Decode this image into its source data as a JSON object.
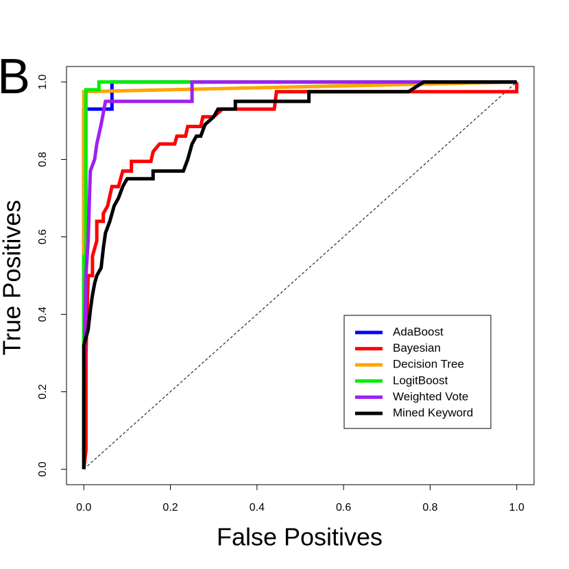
{
  "chart_data": {
    "type": "line",
    "panel_label": "B",
    "x_label": "False Positives",
    "y_label": "True Positives",
    "xlim": [
      -0.04,
      1.04
    ],
    "ylim": [
      -0.04,
      1.04
    ],
    "xticks": [
      {
        "value": 0,
        "label": "0.0"
      },
      0.2,
      0.4,
      0.6,
      0.8,
      {
        "value": 1,
        "label": "1.0"
      }
    ],
    "yticks": [
      {
        "value": 0,
        "label": "0.0"
      },
      0.2,
      0.4,
      0.6,
      0.8,
      {
        "value": 1,
        "label": "1.0"
      }
    ],
    "diagonal": true,
    "legend": "bottom-right",
    "series": [
      {
        "name": "AdaBoost",
        "color": "#0000ff",
        "x": [
          0,
          0,
          0.065,
          0.065,
          1
        ],
        "values": [
          0,
          0.93,
          0.93,
          1,
          1
        ]
      },
      {
        "name": "Bayesian",
        "color": "#ff0000",
        "x": [
          0,
          0.005,
          0.005,
          0.01,
          0.02,
          0.02,
          0.03,
          0.03,
          0.045,
          0.045,
          0.055,
          0.065,
          0.08,
          0.09,
          0.11,
          0.11,
          0.155,
          0.16,
          0.175,
          0.21,
          0.215,
          0.235,
          0.24,
          0.27,
          0.275,
          0.3,
          0.32,
          0.44,
          0.445,
          1,
          1
        ],
        "values": [
          0,
          0.05,
          0.3,
          0.5,
          0.5,
          0.55,
          0.59,
          0.64,
          0.64,
          0.66,
          0.68,
          0.73,
          0.73,
          0.77,
          0.77,
          0.795,
          0.795,
          0.82,
          0.84,
          0.84,
          0.86,
          0.86,
          0.885,
          0.885,
          0.91,
          0.91,
          0.93,
          0.93,
          0.975,
          0.975,
          1
        ]
      },
      {
        "name": "Decision Tree",
        "color": "#ffa500",
        "x": [
          0,
          0,
          1
        ],
        "values": [
          0,
          0.975,
          1
        ]
      },
      {
        "name": "LogitBoost",
        "color": "#00ee00",
        "x": [
          0,
          0,
          0.005,
          0.005,
          0.035,
          0.035,
          1
        ],
        "values": [
          0,
          0.55,
          0.55,
          0.98,
          0.98,
          1,
          1
        ]
      },
      {
        "name": "Weighted Vote",
        "color": "#a020f0",
        "x": [
          0,
          0,
          0.005,
          0.01,
          0.015,
          0.025,
          0.03,
          0.04,
          0.05,
          0.25,
          0.25,
          1
        ],
        "values": [
          0,
          0.2,
          0.5,
          0.59,
          0.77,
          0.8,
          0.84,
          0.89,
          0.95,
          0.95,
          1,
          1
        ]
      },
      {
        "name": "Mined Keyword",
        "color": "#000000",
        "x": [
          0,
          0,
          0.01,
          0.015,
          0.02,
          0.025,
          0.03,
          0.04,
          0.045,
          0.05,
          0.06,
          0.07,
          0.08,
          0.09,
          0.1,
          0.16,
          0.16,
          0.23,
          0.24,
          0.25,
          0.26,
          0.27,
          0.28,
          0.3,
          0.31,
          0.35,
          0.35,
          0.52,
          0.52,
          0.75,
          0.785,
          1
        ],
        "values": [
          0,
          0.32,
          0.36,
          0.41,
          0.45,
          0.48,
          0.5,
          0.52,
          0.57,
          0.61,
          0.64,
          0.68,
          0.7,
          0.73,
          0.75,
          0.75,
          0.77,
          0.77,
          0.8,
          0.84,
          0.86,
          0.86,
          0.89,
          0.91,
          0.93,
          0.93,
          0.95,
          0.95,
          0.975,
          0.975,
          1,
          1
        ]
      }
    ]
  }
}
